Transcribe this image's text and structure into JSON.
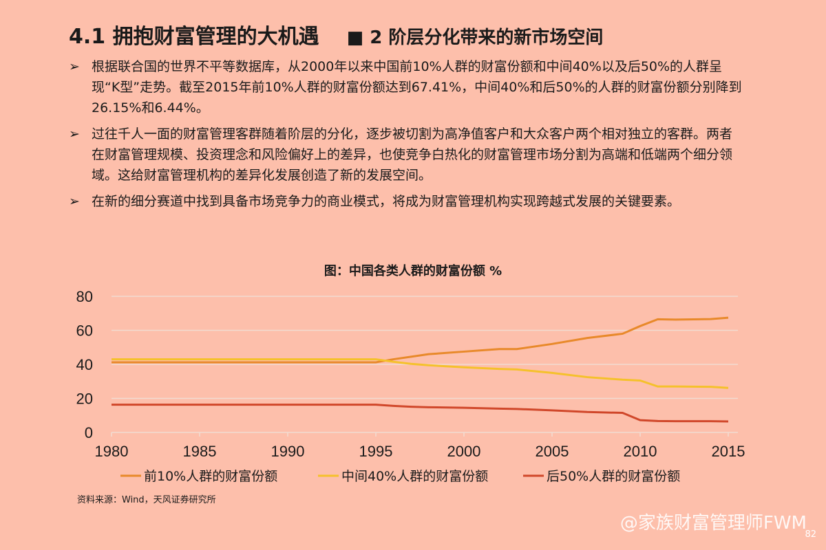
{
  "header": {
    "title": "4.1 拥抱财富管理的大机遇",
    "subtitle": "■ 2 阶层分化带来的新市场空间"
  },
  "bullets": [
    "根据联合国的世界不平等数据库，从2000年以来中国前10%人群的财富份额和中间40%以及后50%的人群呈现“K型”走势。截至2015年前10%人群的财富份额达到67.41%，中间40%和后50%的人群的财富份额分别降到26.15%和6.44%。",
    "过往千人一面的财富管理客群随着阶层的分化，逐步被切割为高净值客户和大众客户两个相对独立的客群。两者在财富管理规模、投资理念和风险偏好上的差异，也使竞争白热化的财富管理市场分割为高端和低端两个细分领域。这给财富管理机构的差异化发展创造了新的发展空间。",
    "在新的细分赛道中找到具备市场竞争力的商业模式，将成为财富管理机构实现跨越式发展的关键要素。"
  ],
  "bullet_marker": "➢",
  "source": "资料来源：Wind，天风证券研究所",
  "watermark": "@家族财富管理师FWM",
  "page_number": "82",
  "chart_data": {
    "type": "line",
    "title": "图：中国各类人群的财富份额 %",
    "xlabel": "",
    "ylabel": "",
    "xlim": [
      1980,
      2015
    ],
    "ylim": [
      0,
      80
    ],
    "xticks": [
      1980,
      1985,
      1990,
      1995,
      2000,
      2005,
      2010,
      2015
    ],
    "yticks": [
      0,
      20,
      40,
      60,
      80
    ],
    "grid": "horizontal",
    "legend": "bottom",
    "x": [
      1980,
      1995,
      1996,
      1997,
      1998,
      2000,
      2002,
      2003,
      2005,
      2007,
      2009,
      2010,
      2011,
      2012,
      2014,
      2015
    ],
    "series": [
      {
        "name": "前10%人群的财富份额",
        "color": "#e8892a",
        "values": [
          41.2,
          41.2,
          43,
          44.5,
          46,
          47.5,
          49,
          49,
          52,
          55.5,
          58,
          62.5,
          66.5,
          66.3,
          66.6,
          67.41
        ]
      },
      {
        "name": "中间40%人群的财富份额",
        "color": "#f5c12b",
        "values": [
          43,
          43,
          41.5,
          40.3,
          39.5,
          38.3,
          37.3,
          37,
          35,
          32.5,
          31,
          30.5,
          27,
          27,
          26.8,
          26.15
        ]
      },
      {
        "name": "后50%人群的财富份额",
        "color": "#d0472a",
        "values": [
          16.3,
          16.3,
          15.6,
          15.1,
          14.8,
          14.5,
          14,
          13.8,
          13,
          12,
          11.5,
          7.2,
          6.7,
          6.6,
          6.6,
          6.44
        ]
      }
    ]
  }
}
